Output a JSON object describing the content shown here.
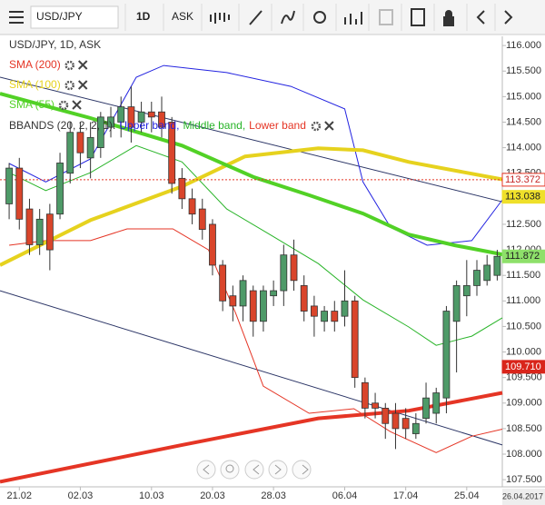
{
  "toolbar": {
    "symbol": "USD/JPY",
    "period": "1D",
    "side": "ASK"
  },
  "chart_data": {
    "type": "candlestick",
    "title": "USD/JPY, 1D, ASK",
    "up_color": "#4e9a68",
    "down_color": "#d9452b",
    "xlim": [
      -0.9,
      48.5
    ],
    "ylim": [
      107.36,
      116.18
    ],
    "xticks": [
      {
        "value": 1,
        "label": "21.02"
      },
      {
        "value": 7,
        "label": "02.03"
      },
      {
        "value": 14,
        "label": "10.03"
      },
      {
        "value": 20,
        "label": "20.03"
      },
      {
        "value": 26,
        "label": "28.03"
      },
      {
        "value": 33,
        "label": "06.04"
      },
      {
        "value": 39,
        "label": "17.04"
      },
      {
        "value": 45,
        "label": "25.04"
      }
    ],
    "last_date": "26.04.2017",
    "yticks": [
      {
        "value": 107.5,
        "label": "107.500"
      },
      {
        "value": 108,
        "label": "108.000"
      },
      {
        "value": 108.5,
        "label": "108.500"
      },
      {
        "value": 109,
        "label": "109.000"
      },
      {
        "value": 109.5,
        "label": "109.500"
      },
      {
        "value": 110,
        "label": "110.000"
      },
      {
        "value": 110.5,
        "label": "110.500"
      },
      {
        "value": 111,
        "label": "111.000"
      },
      {
        "value": 111.5,
        "label": "111.500"
      },
      {
        "value": 112,
        "label": "112.000"
      },
      {
        "value": 112.5,
        "label": "112.500"
      },
      {
        "value": 113,
        "label": "113.000"
      },
      {
        "value": 113.5,
        "label": "113.500"
      },
      {
        "value": 114,
        "label": "114.000"
      },
      {
        "value": 114.5,
        "label": "114.500"
      },
      {
        "value": 115,
        "label": "115.000"
      },
      {
        "value": 115.5,
        "label": "115.500"
      },
      {
        "value": 116,
        "label": "116.000"
      }
    ],
    "candles": {
      "open": [
        112.9,
        113.6,
        112.8,
        112.1,
        112.7,
        112.7,
        113.5,
        114.3,
        113.8,
        114.0,
        114.4,
        114.5,
        114.8,
        114.5,
        114.7,
        114.7,
        114.5,
        113.4,
        113.0,
        112.8,
        112.5,
        111.7,
        111.1,
        110.9,
        111.2,
        110.6,
        111.1,
        111.2,
        111.9,
        111.3,
        110.9,
        110.6,
        110.8,
        110.7,
        111.0,
        109.4,
        109.0,
        108.9,
        108.8,
        108.7,
        108.4,
        108.7,
        108.8,
        109.1,
        110.6,
        111.1,
        111.3,
        111.4,
        111.5
      ],
      "high": [
        113.7,
        113.8,
        113.0,
        112.8,
        112.9,
        113.9,
        114.5,
        114.5,
        114.5,
        114.7,
        114.8,
        115.0,
        115.2,
        114.9,
        114.9,
        115.0,
        114.6,
        113.6,
        113.2,
        113.0,
        112.6,
        111.8,
        111.3,
        111.5,
        111.3,
        111.3,
        111.4,
        112.1,
        112.2,
        111.5,
        111.1,
        110.9,
        111.0,
        111.6,
        111.1,
        109.5,
        109.2,
        109.0,
        109.0,
        108.9,
        108.8,
        109.4,
        109.3,
        110.9,
        111.4,
        111.8,
        111.8,
        111.9,
        112.0
      ],
      "low": [
        112.6,
        112.4,
        111.9,
        111.9,
        111.6,
        112.6,
        113.3,
        113.6,
        113.4,
        113.8,
        114.2,
        114.2,
        114.1,
        114.3,
        114.3,
        114.2,
        113.1,
        112.8,
        112.5,
        112.2,
        111.5,
        110.8,
        110.6,
        110.6,
        110.3,
        110.4,
        110.9,
        110.9,
        111.2,
        110.6,
        110.3,
        110.4,
        110.4,
        110.5,
        109.3,
        108.7,
        108.7,
        108.3,
        108.1,
        108.3,
        108.3,
        108.6,
        108.6,
        108.8,
        109.6,
        110.7,
        111.1,
        111.3,
        111.4
      ],
      "close": [
        113.6,
        112.6,
        112.1,
        112.6,
        112.0,
        113.7,
        114.3,
        113.9,
        114.2,
        114.6,
        114.6,
        114.8,
        114.4,
        114.7,
        114.6,
        114.4,
        113.3,
        113.0,
        112.7,
        112.4,
        111.7,
        111.0,
        110.9,
        111.4,
        110.6,
        111.2,
        111.2,
        111.9,
        111.4,
        110.8,
        110.7,
        110.8,
        110.6,
        111.0,
        109.5,
        108.9,
        108.9,
        108.6,
        108.5,
        108.5,
        108.6,
        109.1,
        109.2,
        110.8,
        111.3,
        111.3,
        111.6,
        111.7,
        111.872
      ]
    },
    "series": [
      {
        "name": "SMA (200)",
        "color": "#e53525",
        "x": [
          -0.9,
          17,
          30.4,
          39.3,
          48.5
        ],
        "values": [
          107.46,
          108.18,
          108.7,
          108.85,
          109.2
        ]
      },
      {
        "name": "SMA (100)",
        "color": "#e6d21e",
        "x": [
          -0.9,
          8,
          17,
          23.2,
          30.4,
          34.8,
          39.3,
          48.5
        ],
        "values": [
          111.7,
          112.58,
          113.24,
          113.83,
          113.99,
          113.95,
          113.72,
          113.38
        ]
      },
      {
        "name": "SMA (55)",
        "color": "#52d126",
        "x": [
          -0.9,
          8,
          17,
          24.1,
          29.5,
          34.8,
          39.3,
          43.8,
          48.5
        ],
        "values": [
          115.06,
          114.58,
          114.04,
          113.42,
          113.07,
          112.71,
          112.3,
          112.09,
          111.91
        ]
      }
    ],
    "bbands": {
      "label": "BBANDS (20, 2, 2, 1):",
      "series": [
        {
          "name": "Upper band,",
          "color": "#2323e0",
          "x": [
            0,
            3.6,
            8,
            12.5,
            15.2,
            21.4,
            27.7,
            33,
            34.8,
            37.5,
            41.1,
            45.5,
            48.5
          ],
          "values": [
            113.69,
            113.33,
            113.78,
            115.38,
            115.61,
            115.47,
            115.2,
            114.76,
            113.33,
            112.44,
            112.09,
            112.18,
            112.98
          ]
        },
        {
          "name": "Middle band,",
          "color": "#28b428",
          "x": [
            0,
            3.6,
            8,
            12.5,
            17,
            21.4,
            25.9,
            30.4,
            34.8,
            39.3,
            42,
            45.5,
            48.5
          ],
          "values": [
            113.51,
            113.16,
            113.51,
            114.04,
            113.72,
            112.8,
            112.27,
            111.73,
            111.02,
            110.49,
            110.13,
            110.31,
            110.67
          ]
        },
        {
          "name": "Lower band",
          "color": "#e53525",
          "x": [
            0,
            3.6,
            8,
            11.6,
            16.1,
            19.6,
            22.3,
            25,
            29.5,
            33.9,
            37.5,
            42,
            45.5,
            48.5
          ],
          "values": [
            112.09,
            112.18,
            112.18,
            112.41,
            112.41,
            112.0,
            110.75,
            109.33,
            108.8,
            108.89,
            108.44,
            108.03,
            108.35,
            108.49
          ]
        }
      ]
    },
    "trendlines": [
      {
        "color": "#2b3566",
        "x": [
          -0.9,
          48.5
        ],
        "values": [
          115.38,
          112.94
        ]
      },
      {
        "color": "#2b3566",
        "x": [
          -0.9,
          48.5
        ],
        "values": [
          111.2,
          108.18
        ]
      }
    ],
    "price_line": {
      "value": 113.372,
      "color": "#e53525"
    },
    "price_tags": [
      {
        "value": 113.372,
        "label": "113.372",
        "color": "#ffffff",
        "text_color": "#c62828"
      },
      {
        "value": 113.038,
        "label": "113.038",
        "color": "#efe02a",
        "text_color": "#222222"
      },
      {
        "value": 111.872,
        "label": "111.872",
        "color": "#8ee06a",
        "text_color": "#222222"
      },
      {
        "value": 109.71,
        "label": "109.710",
        "color": "#d9251b",
        "text_color": "#ffffff"
      }
    ]
  }
}
